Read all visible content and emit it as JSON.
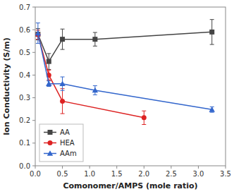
{
  "chart_data": {
    "type": "line",
    "xlabel": "Comonomer/AMPS (mole ratio)",
    "ylabel": "Ion Conductivity (S/m)",
    "series": [
      {
        "name": "AA",
        "color": "#444444",
        "marker": "square",
        "x": [
          0.05,
          0.25,
          0.5,
          1.1,
          3.25
        ],
        "values": [
          0.58,
          0.46,
          0.558,
          0.558,
          0.59
        ],
        "errors": [
          0.025,
          0.035,
          0.045,
          0.03,
          0.055
        ]
      },
      {
        "name": "HEA",
        "color": "#dd2222",
        "marker": "circle",
        "x": [
          0.05,
          0.25,
          0.5,
          2.0
        ],
        "values": [
          0.578,
          0.4,
          0.285,
          0.212
        ],
        "errors": [
          0.02,
          0.022,
          0.055,
          0.03
        ]
      },
      {
        "name": "AAm",
        "color": "#3366cc",
        "marker": "triangle",
        "x": [
          0.05,
          0.25,
          0.5,
          1.1,
          3.25
        ],
        "values": [
          0.585,
          0.362,
          0.362,
          0.333,
          0.248
        ],
        "errors": [
          0.045,
          0.012,
          0.03,
          0.02,
          0.012
        ]
      }
    ],
    "xlim": [
      0,
      3.5
    ],
    "ylim": [
      0.0,
      0.7
    ],
    "xticks": [
      {
        "value": 0.0,
        "label": "0.0"
      },
      0.5,
      {
        "value": 1.0,
        "label": "1.0"
      },
      1.5,
      {
        "value": 2.0,
        "label": "2.0"
      },
      2.5,
      {
        "value": 3.0,
        "label": "3.0"
      },
      3.5
    ],
    "yticks": [
      {
        "value": 0.0,
        "label": "0.0"
      },
      0.1,
      0.2,
      0.3,
      0.4,
      0.5,
      0.6,
      0.7
    ],
    "grid": false,
    "legend": "lower left"
  }
}
